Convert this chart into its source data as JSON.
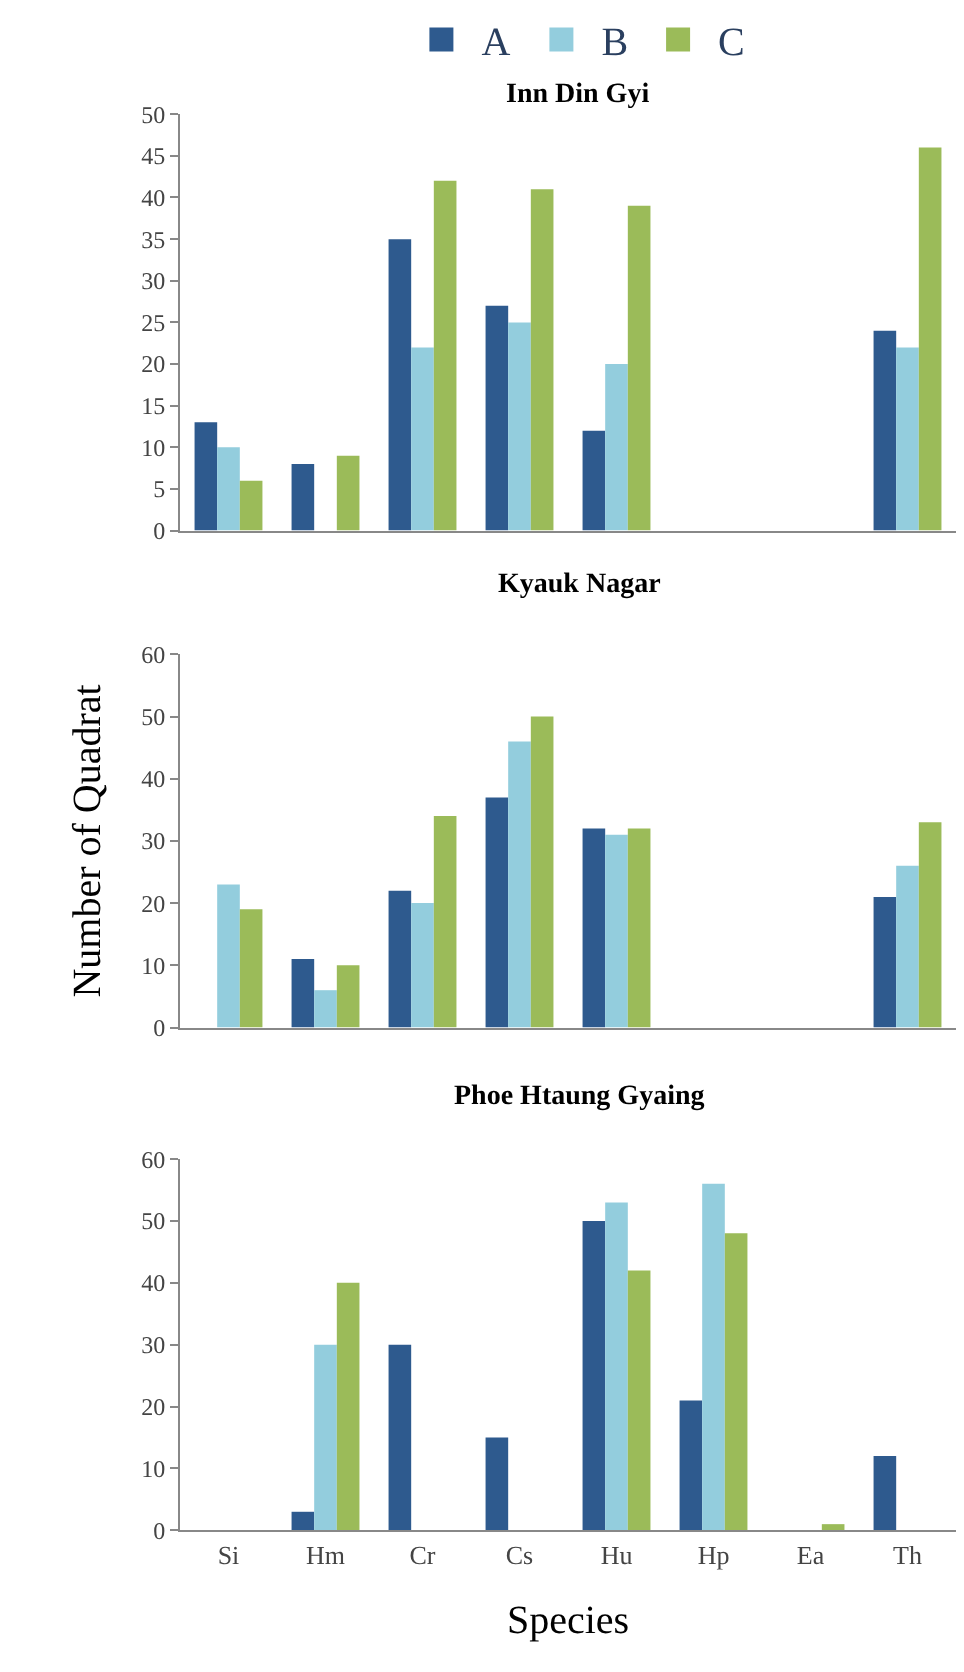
{
  "chart_data": [
    {
      "type": "bar",
      "title": "Inn Din Gyi",
      "legend": "top",
      "tick_labels": "y",
      "categories": [
        null,
        null,
        null,
        null,
        null,
        null,
        null,
        null
      ],
      "ylim": [
        0,
        50
      ],
      "yticks": [
        0,
        5,
        10,
        15,
        20,
        25,
        30,
        35,
        40,
        45,
        50
      ],
      "series": [
        {
          "name": "A",
          "color": "#2e5a8e",
          "values": [
            13,
            8,
            35,
            27,
            12,
            0,
            0,
            24
          ]
        },
        {
          "name": "B",
          "color": "#93cddd",
          "values": [
            10,
            0,
            22,
            25,
            20,
            0,
            0,
            22
          ]
        },
        {
          "name": "C",
          "color": "#9bbb59",
          "values": [
            6,
            9,
            42,
            41,
            39,
            0,
            0,
            46
          ]
        }
      ]
    },
    {
      "type": "bar",
      "title": "Kyauk Nagar",
      "ylabel": "Number of Quadrat",
      "tick_labels": "y",
      "categories": [
        null,
        null,
        null,
        null,
        null,
        null,
        null,
        null
      ],
      "ylim": [
        0,
        60
      ],
      "yticks": [
        0,
        10,
        20,
        30,
        40,
        50,
        60
      ],
      "series": [
        {
          "color": "#2e5a8e",
          "values": [
            0,
            11,
            22,
            37,
            32,
            0,
            0,
            21
          ]
        },
        {
          "color": "#93cddd",
          "values": [
            23,
            6,
            20,
            46,
            31,
            0,
            0,
            26
          ]
        },
        {
          "color": "#9bbb59",
          "values": [
            19,
            10,
            34,
            50,
            32,
            0,
            0,
            33
          ]
        }
      ]
    },
    {
      "type": "bar",
      "title": "Phoe Htaung Gyaing",
      "xlabel": "Species",
      "categories": [
        "Si",
        "Hm",
        "Cr",
        "Cs",
        "Hu",
        "Hp",
        "Ea",
        "Th"
      ],
      "ylim": [
        0,
        60
      ],
      "yticks": [
        0,
        10,
        20,
        30,
        40,
        50,
        60
      ],
      "series": [
        {
          "color": "#2e5a8e",
          "values": [
            0,
            3,
            30,
            15,
            50,
            21,
            0,
            12
          ]
        },
        {
          "color": "#93cddd",
          "values": [
            0,
            30,
            0,
            0,
            53,
            56,
            0,
            0
          ]
        },
        {
          "color": "#9bbb59",
          "values": [
            0,
            40,
            0,
            0,
            42,
            48,
            1,
            0
          ]
        }
      ]
    }
  ]
}
